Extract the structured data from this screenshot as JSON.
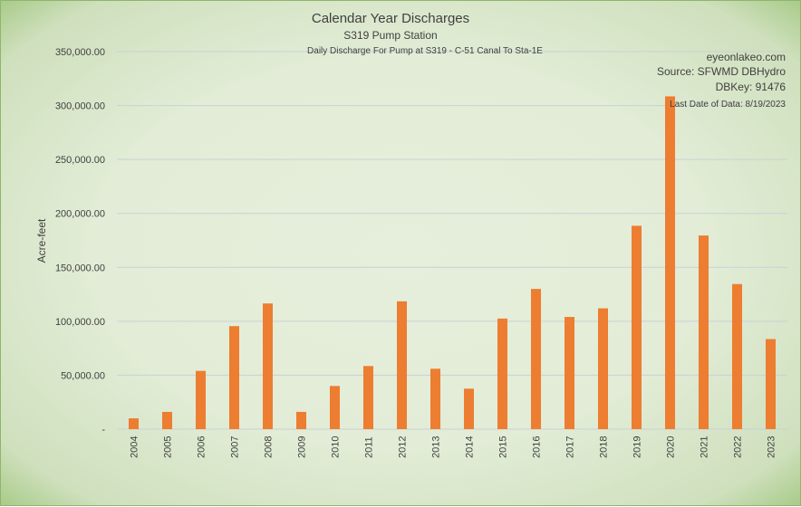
{
  "chart_data": {
    "type": "bar",
    "title": "Calendar Year Discharges",
    "subtitle": "S319 Pump Station",
    "subtitle2": "Daily Discharge For Pump at S319 - C-51 Canal To Sta-1E",
    "ylabel": "Acre-feet",
    "xlabel": "",
    "ylim": [
      0,
      350000
    ],
    "yticks": [
      "-",
      "50,000.00",
      "100,000.00",
      "150,000.00",
      "200,000.00",
      "250,000.00",
      "300,000.00",
      "350,000.00"
    ],
    "grid": true,
    "bar_color": "#ed7d31",
    "categories": [
      "2004",
      "2005",
      "2006",
      "2007",
      "2008",
      "2009",
      "2010",
      "2011",
      "2012",
      "2013",
      "2014",
      "2015",
      "2016",
      "2017",
      "2018",
      "2019",
      "2020",
      "2021",
      "2022",
      "2023"
    ],
    "values": [
      10000,
      16000,
      54000,
      95500,
      116500,
      16000,
      40000,
      58500,
      118500,
      56000,
      37500,
      102500,
      130000,
      104000,
      112000,
      188500,
      308500,
      179500,
      134500,
      83500
    ]
  },
  "info": {
    "site": "eyeonlakeo.com",
    "source": "Source: SFWMD DBHydro",
    "dbkey": "DBKey: 91476",
    "last_date": "Last Date of Data: 8/19/2023"
  }
}
